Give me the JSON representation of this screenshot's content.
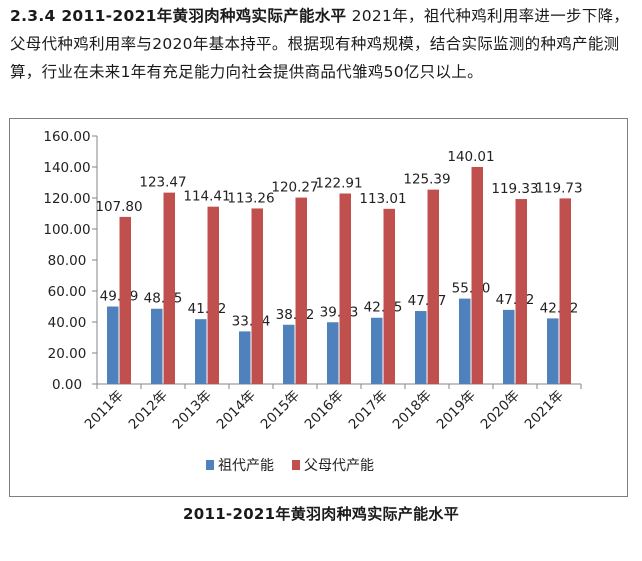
{
  "article": {
    "heading": "2.3.4 2011-2021年黄羽肉种鸡实际产能水平",
    "body": " 2021年，祖代种鸡利用率进一步下降，父母代种鸡利用率与2020年基本持平。根据现有种鸡规模，结合实际监测的种鸡产能测算，行业在未来1年有充足能力向社会提供商品代雏鸡50亿只以上。"
  },
  "caption": "2011-2021年黄羽肉种鸡实际产能水平",
  "chart_data": {
    "type": "bar",
    "categories": [
      "2011年",
      "2012年",
      "2013年",
      "2014年",
      "2015年",
      "2016年",
      "2017年",
      "2018年",
      "2019年",
      "2020年",
      "2021年"
    ],
    "series": [
      {
        "name": "祖代产能",
        "color": "#4f81bd",
        "values": [
          49.99,
          48.55,
          41.82,
          33.94,
          38.22,
          39.83,
          42.75,
          47.07,
          55.1,
          47.82,
          42.32
        ],
        "labels": [
          "49.99",
          "48.55",
          "41.82",
          "33.94",
          "38.22",
          "39.83",
          "42.75",
          "47.07",
          "55.10",
          "47.82",
          "42.32"
        ]
      },
      {
        "name": "父母代产能",
        "color": "#c0504d",
        "values": [
          107.8,
          123.47,
          114.41,
          113.26,
          120.27,
          122.91,
          113.01,
          125.39,
          140.01,
          119.33,
          119.73
        ],
        "labels": [
          "107.80",
          "123.47",
          "114.41",
          "113.26",
          "120.27",
          "122.91",
          "113.01",
          "125.39",
          "140.01",
          "119.33",
          "119.73"
        ]
      }
    ],
    "ylim": [
      0,
      160
    ],
    "yticks": [
      "0.00",
      "20.00",
      "40.00",
      "60.00",
      "80.00",
      "100.00",
      "120.00",
      "140.00",
      "160.00"
    ],
    "legend_position": "bottom",
    "grid": false
  }
}
